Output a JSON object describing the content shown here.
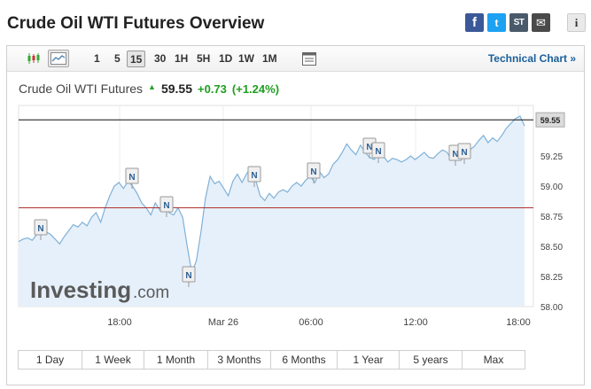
{
  "page": {
    "title": "Crude Oil WTI Futures Overview"
  },
  "share": [
    {
      "name": "facebook-icon",
      "glyph": "f"
    },
    {
      "name": "twitter-icon",
      "glyph": "t"
    },
    {
      "name": "stocktwits-icon",
      "glyph": "ST"
    },
    {
      "name": "email-icon",
      "glyph": "✉"
    }
  ],
  "info_glyph": "i",
  "toolbar": {
    "intervals": [
      "1",
      "5",
      "15",
      "30",
      "1H",
      "5H",
      "1D",
      "1W",
      "1M"
    ],
    "active_interval": "15",
    "technical_chart_label": "Technical Chart »"
  },
  "quote": {
    "name": "Crude Oil WTI Futures",
    "price": "59.55",
    "change": "+0.73",
    "change_pct": "(+1.24%)",
    "up_color": "#2aa02a"
  },
  "chart_data": {
    "type": "area",
    "x_tick_labels": [
      "18:00",
      "Mar 26",
      "06:00",
      "12:00",
      "18:00"
    ],
    "y_tick_labels": [
      "59.25",
      "59.00",
      "58.75",
      "58.50",
      "58.25",
      "58.00"
    ],
    "ylim": [
      58.0,
      59.55
    ],
    "current_price_label": "59.55",
    "previous_close_line": 58.82,
    "line_color": "#7fb1d8",
    "fill_color": "#e6f0fa",
    "watermark_brand": "Investing",
    "watermark_suffix": ".com",
    "news_marker_label": "N",
    "series": [
      {
        "values": [
          58.54,
          58.56,
          58.57,
          58.55,
          58.6,
          58.64,
          58.62,
          58.6,
          58.56,
          58.52,
          58.58,
          58.63,
          58.68,
          58.66,
          58.7,
          58.67,
          58.74,
          58.78,
          58.7,
          58.82,
          58.92,
          59.0,
          59.03,
          58.98,
          59.04,
          59.0,
          58.94,
          58.86,
          58.82,
          58.76,
          58.86,
          58.8,
          58.84,
          58.78,
          58.76,
          58.82,
          58.74,
          58.5,
          58.28,
          58.38,
          58.62,
          58.9,
          59.08,
          59.02,
          59.04,
          58.98,
          58.92,
          59.04,
          59.1,
          59.03,
          59.1,
          59.16,
          59.05,
          58.92,
          58.88,
          58.94,
          58.9,
          58.95,
          58.97,
          58.95,
          59.0,
          59.03,
          59.0,
          59.05,
          59.08,
          59.03,
          59.12,
          59.07,
          59.1,
          59.18,
          59.22,
          59.28,
          59.35,
          59.3,
          59.26,
          59.34,
          59.28,
          59.24,
          59.22,
          59.27,
          59.25,
          59.2,
          59.23,
          59.22,
          59.2,
          59.22,
          59.25,
          59.22,
          59.25,
          59.28,
          59.24,
          59.23,
          59.27,
          59.3,
          59.28,
          59.22,
          59.24,
          59.3,
          59.26,
          59.3,
          59.33,
          59.38,
          59.42,
          59.36,
          59.4,
          59.37,
          59.42,
          59.48,
          59.52,
          59.56,
          59.58,
          59.5
        ]
      }
    ]
  },
  "ranges": [
    "1 Day",
    "1 Week",
    "1 Month",
    "3 Months",
    "6 Months",
    "1 Year",
    "5 years",
    "Max"
  ]
}
